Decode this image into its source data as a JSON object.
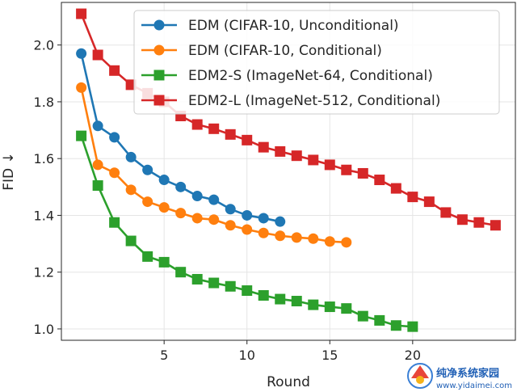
{
  "chart_data": {
    "type": "line",
    "title": "",
    "xlabel": "Round",
    "ylabel": "FID ↓",
    "xlim": [
      -1.2,
      26.2
    ],
    "ylim": [
      0.96,
      2.15
    ],
    "xticks": [
      5,
      10,
      15,
      20
    ],
    "yticks": [
      1.0,
      1.2,
      1.4,
      1.6,
      1.8,
      2.0
    ],
    "ytick_labels": [
      "1.0",
      "1.2",
      "1.4",
      "1.6",
      "1.8",
      "2.0"
    ],
    "grid": true,
    "legend_position": "top-right",
    "series": [
      {
        "name": "EDM (CIFAR-10, Unconditional)",
        "color": "#1f77b4",
        "marker": "circle",
        "x": [
          0,
          1,
          2,
          3,
          4,
          5,
          6,
          7,
          8,
          9,
          10,
          11,
          12
        ],
        "values": [
          1.97,
          1.715,
          1.675,
          1.605,
          1.56,
          1.525,
          1.5,
          1.468,
          1.455,
          1.422,
          1.4,
          1.39,
          1.378
        ]
      },
      {
        "name": "EDM (CIFAR-10, Conditional)",
        "color": "#ff7f0e",
        "marker": "circle",
        "x": [
          0,
          1,
          2,
          3,
          4,
          5,
          6,
          7,
          8,
          9,
          10,
          11,
          12,
          13,
          14,
          15,
          16
        ],
        "values": [
          1.85,
          1.578,
          1.55,
          1.49,
          1.448,
          1.428,
          1.408,
          1.39,
          1.385,
          1.365,
          1.35,
          1.338,
          1.328,
          1.322,
          1.318,
          1.308,
          1.305
        ]
      },
      {
        "name": "EDM2-S (ImageNet-64, Conditional)",
        "color": "#2ca02c",
        "marker": "square",
        "x": [
          0,
          1,
          2,
          3,
          4,
          5,
          6,
          7,
          8,
          9,
          10,
          11,
          12,
          13,
          14,
          15,
          16,
          17,
          18,
          19,
          20
        ],
        "values": [
          1.68,
          1.505,
          1.375,
          1.31,
          1.255,
          1.235,
          1.2,
          1.175,
          1.162,
          1.15,
          1.135,
          1.118,
          1.105,
          1.098,
          1.085,
          1.078,
          1.072,
          1.045,
          1.03,
          1.012,
          1.008
        ]
      },
      {
        "name": "EDM2-L (ImageNet-512, Conditional)",
        "color": "#d62728",
        "marker": "square",
        "x": [
          0,
          1,
          2,
          3,
          4,
          5,
          6,
          7,
          8,
          9,
          10,
          11,
          12,
          13,
          14,
          15,
          16,
          17,
          18,
          19,
          20,
          21,
          22,
          23,
          24,
          25
        ],
        "values": [
          2.11,
          1.965,
          1.91,
          1.86,
          1.83,
          1.8,
          1.75,
          1.72,
          1.705,
          1.685,
          1.665,
          1.64,
          1.625,
          1.61,
          1.595,
          1.578,
          1.56,
          1.548,
          1.525,
          1.495,
          1.465,
          1.448,
          1.41,
          1.385,
          1.375,
          1.365
        ]
      }
    ]
  },
  "watermark": {
    "title": "纯净系统家园",
    "url": "www.yidaimei.com"
  }
}
